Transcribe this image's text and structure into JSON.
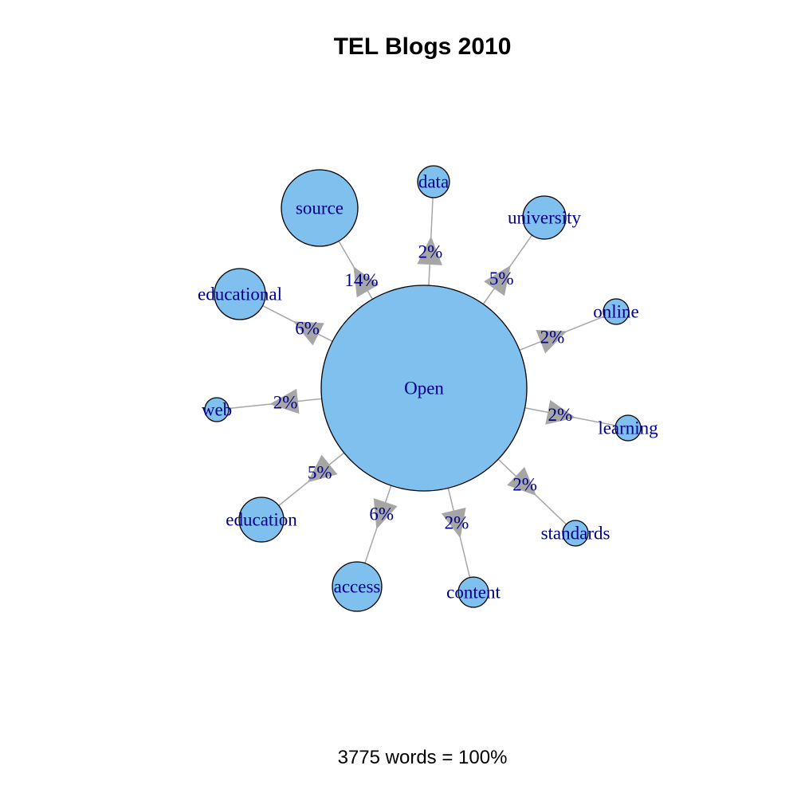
{
  "title": "TEL Blogs 2010",
  "footer": "3775 words = 100%",
  "colors": {
    "node_fill": "#80c0ee",
    "node_stroke": "#000000",
    "edge": "#a6a6a6",
    "label": "#00008b"
  },
  "center": {
    "word": "Open"
  },
  "edges": [
    {
      "word": "source",
      "percent_label": "14%",
      "percent": 14
    },
    {
      "word": "data",
      "percent_label": "2%",
      "percent": 2
    },
    {
      "word": "university",
      "percent_label": "5%",
      "percent": 5
    },
    {
      "word": "online",
      "percent_label": "2%",
      "percent": 2
    },
    {
      "word": "learning",
      "percent_label": "2%",
      "percent": 2
    },
    {
      "word": "standards",
      "percent_label": "2%",
      "percent": 2
    },
    {
      "word": "content",
      "percent_label": "2%",
      "percent": 2
    },
    {
      "word": "access",
      "percent_label": "6%",
      "percent": 6
    },
    {
      "word": "education",
      "percent_label": "5%",
      "percent": 5
    },
    {
      "word": "web",
      "percent_label": "2%",
      "percent": 2
    },
    {
      "word": "educational",
      "percent_label": "6%",
      "percent": 6
    }
  ]
}
